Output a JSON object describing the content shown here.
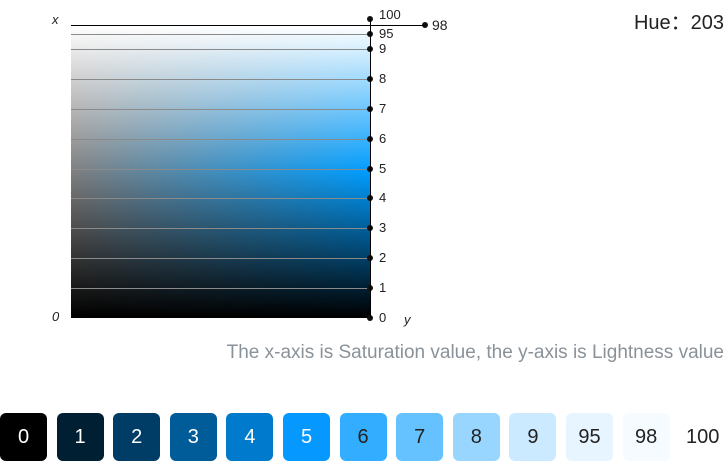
{
  "hue_label": "Hue：203",
  "hue": 203,
  "axis_x": "x",
  "axis_y": "y",
  "origin": "0",
  "caption": "The x-axis is Saturation value, the y-axis is Lightness value",
  "levels": [
    {
      "label": "0",
      "lightness": 0
    },
    {
      "label": "1",
      "lightness": 10
    },
    {
      "label": "2",
      "lightness": 20
    },
    {
      "label": "3",
      "lightness": 30
    },
    {
      "label": "4",
      "lightness": 40
    },
    {
      "label": "5",
      "lightness": 50
    },
    {
      "label": "6",
      "lightness": 60
    },
    {
      "label": "7",
      "lightness": 70
    },
    {
      "label": "8",
      "lightness": 80
    },
    {
      "label": "9",
      "lightness": 90
    },
    {
      "label": "95",
      "lightness": 95
    },
    {
      "label": "98",
      "lightness": 98
    },
    {
      "label": "100",
      "lightness": 100
    }
  ],
  "swatches": [
    {
      "label": "0",
      "color": "#000000",
      "text": "#ffffff"
    },
    {
      "label": "1",
      "color": "#001f33",
      "text": "#ffffff"
    },
    {
      "label": "2",
      "color": "#003d66",
      "text": "#ffffff"
    },
    {
      "label": "3",
      "color": "#005c99",
      "text": "#ffffff"
    },
    {
      "label": "4",
      "color": "#007acc",
      "text": "#ffffff"
    },
    {
      "label": "5",
      "color": "#0599ff",
      "text": "#ffffff"
    },
    {
      "label": "6",
      "color": "#33adff",
      "text": "#222222"
    },
    {
      "label": "7",
      "color": "#66c2ff",
      "text": "#222222"
    },
    {
      "label": "8",
      "color": "#99d6ff",
      "text": "#222222"
    },
    {
      "label": "9",
      "color": "#cceaff",
      "text": "#222222"
    },
    {
      "label": "95",
      "color": "#e6f5ff",
      "text": "#222222"
    },
    {
      "label": "98",
      "color": "#f5fbff",
      "text": "#222222"
    },
    {
      "label": "100",
      "color": "#ffffff",
      "text": "#222222"
    }
  ]
}
